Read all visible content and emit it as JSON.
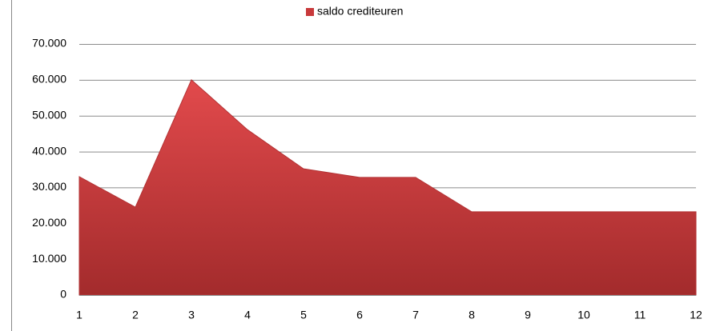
{
  "chart_data": {
    "type": "area",
    "categories": [
      "1",
      "2",
      "3",
      "4",
      "5",
      "6",
      "7",
      "8",
      "9",
      "10",
      "11",
      "12"
    ],
    "series": [
      {
        "name": "saldo crediteuren",
        "color": "#c8393b",
        "values": [
          33000,
          24500,
          60000,
          46100,
          35200,
          32800,
          32800,
          23200,
          23200,
          23200,
          23200,
          23200
        ]
      }
    ],
    "ylim": [
      0,
      70000
    ],
    "yticks": [
      0,
      {
        "value": 10000,
        "label": "10.000"
      },
      {
        "value": 20000,
        "label": "20.000"
      },
      {
        "value": 30000,
        "label": "30.000"
      },
      {
        "value": 40000,
        "label": "40.000"
      },
      {
        "value": 50000,
        "label": "50.000"
      },
      {
        "value": 60000,
        "label": "60.000"
      },
      {
        "value": 70000,
        "label": "70.000"
      }
    ],
    "grid": true,
    "legend": "top"
  }
}
